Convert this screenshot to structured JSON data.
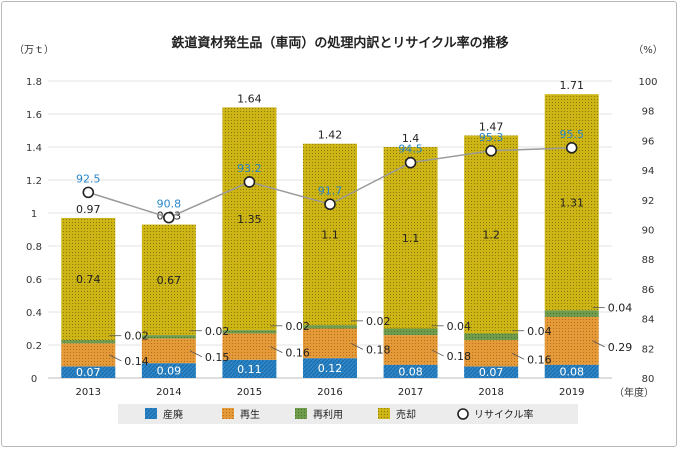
{
  "chart_data": {
    "type": "bar",
    "title": "鉄道資材発生品（車両）の処理内訳とリサイクル率の推移",
    "left_axis_unit": "（万ｔ）",
    "right_axis_unit": "（%）",
    "x_unit": "（年度）",
    "categories": [
      "2013",
      "2014",
      "2015",
      "2016",
      "2017",
      "2018",
      "2019"
    ],
    "left_ylim": [
      0,
      1.8
    ],
    "left_ticks": [
      {
        "value": 0,
        "label": "0"
      },
      {
        "value": 0.2,
        "label": "0.2"
      },
      {
        "value": 0.4,
        "label": "0.4"
      },
      {
        "value": 0.6,
        "label": "0.6"
      },
      {
        "value": 0.8,
        "label": "0.8"
      },
      {
        "value": 1.0,
        "label": "1"
      },
      {
        "value": 1.2,
        "label": "1.2"
      },
      {
        "value": 1.4,
        "label": "1.4"
      },
      {
        "value": 1.6,
        "label": "1.6"
      },
      {
        "value": 1.8,
        "label": "1.8"
      }
    ],
    "right_ylim": [
      80,
      100
    ],
    "right_ticks": [
      {
        "value": 80,
        "label": "80"
      },
      {
        "value": 82,
        "label": "82"
      },
      {
        "value": 84,
        "label": "84"
      },
      {
        "value": 86,
        "label": "86"
      },
      {
        "value": 88,
        "label": "88"
      },
      {
        "value": 90,
        "label": "90"
      },
      {
        "value": 92,
        "label": "92"
      },
      {
        "value": 94,
        "label": "94"
      },
      {
        "value": 96,
        "label": "96"
      },
      {
        "value": 98,
        "label": "98"
      },
      {
        "value": 100,
        "label": "100"
      }
    ],
    "series": [
      {
        "name": "産廃",
        "color": "#2f86c8",
        "values": [
          0.07,
          0.09,
          0.11,
          0.12,
          0.08,
          0.07,
          0.08
        ],
        "labels": [
          "0.07",
          "0.09",
          "0.11",
          "0.12",
          "0.08",
          "0.07",
          "0.08"
        ]
      },
      {
        "name": "再生",
        "color": "#e39a3b",
        "values": [
          0.14,
          0.15,
          0.16,
          0.18,
          0.18,
          0.16,
          0.29
        ],
        "labels": [
          "0.14",
          "0.15",
          "0.16",
          "0.18",
          "0.18",
          "0.16",
          "0.29"
        ]
      },
      {
        "name": "再利用",
        "color": "#6f9c4c",
        "values": [
          0.02,
          0.02,
          0.02,
          0.02,
          0.04,
          0.04,
          0.04
        ],
        "labels": [
          "0.02",
          "0.02",
          "0.02",
          "0.02",
          "0.04",
          "0.04",
          "0.04"
        ]
      },
      {
        "name": "売却",
        "color": "#cdb516",
        "values": [
          0.74,
          0.67,
          1.35,
          1.1,
          1.1,
          1.2,
          1.31
        ],
        "labels": [
          "0.74",
          "0.67",
          "1.35",
          "1.1",
          "1.1",
          "1.2",
          "1.31"
        ]
      }
    ],
    "totals": [
      0.97,
      0.93,
      1.64,
      1.42,
      1.4,
      1.47,
      1.71
    ],
    "total_labels": [
      "0.97",
      "0.93",
      "1.64",
      "1.42",
      "1.4",
      "1.47",
      "1.71"
    ],
    "line": {
      "name": "リサイクル率",
      "axis": "right",
      "values": [
        92.5,
        90.8,
        93.2,
        91.7,
        94.5,
        95.3,
        95.5
      ],
      "labels": [
        "92.5",
        "90.8",
        "93.2",
        "91.7",
        "94.5",
        "95.3",
        "95.5"
      ],
      "color": "#9a9a9a",
      "label_color": "#2b86c9"
    },
    "legend": {
      "position": "bottom",
      "items": [
        "産廃",
        "再生",
        "再利用",
        "売却",
        "リサイクル率"
      ]
    }
  }
}
